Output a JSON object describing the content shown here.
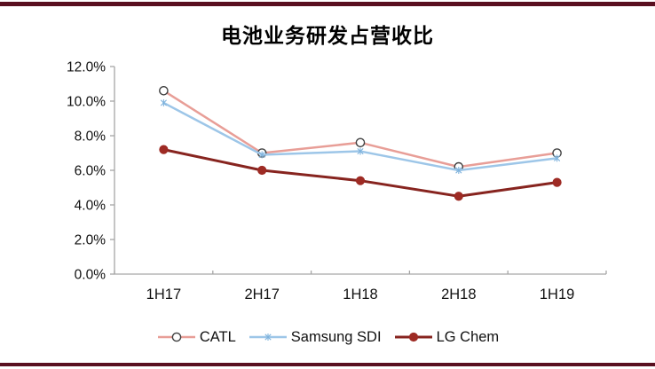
{
  "page": {
    "accent_bar_color": "#5a1020",
    "background": "#ffffff"
  },
  "chart_data": {
    "type": "line",
    "title": "电池业务研发占营收比",
    "categories": [
      "1H17",
      "2H17",
      "1H18",
      "2H18",
      "1H19"
    ],
    "y_axis": {
      "min": 0,
      "max": 12,
      "step": 2,
      "tick_labels": [
        "0.0%",
        "2.0%",
        "4.0%",
        "6.0%",
        "8.0%",
        "10.0%",
        "12.0%"
      ],
      "unit": "%"
    },
    "series": [
      {
        "name": "CATL",
        "color": "#e89e97",
        "marker": "open-circle",
        "marker_color": "#404040",
        "line_width": 2.5,
        "values": [
          10.6,
          7.0,
          7.6,
          6.2,
          7.0
        ]
      },
      {
        "name": "Samsung SDI",
        "color": "#9dc6e8",
        "marker": "asterisk",
        "marker_color": "#7fb3dd",
        "line_width": 2.5,
        "values": [
          9.9,
          6.9,
          7.1,
          6.0,
          6.7
        ]
      },
      {
        "name": "LG Chem",
        "color": "#87241f",
        "marker": "filled-circle",
        "marker_color": "#9e2b24",
        "line_width": 3,
        "values": [
          7.2,
          6.0,
          5.4,
          4.5,
          5.3
        ]
      }
    ],
    "legend_position": "bottom",
    "grid": false,
    "axis_color": "#a6a6a6"
  }
}
